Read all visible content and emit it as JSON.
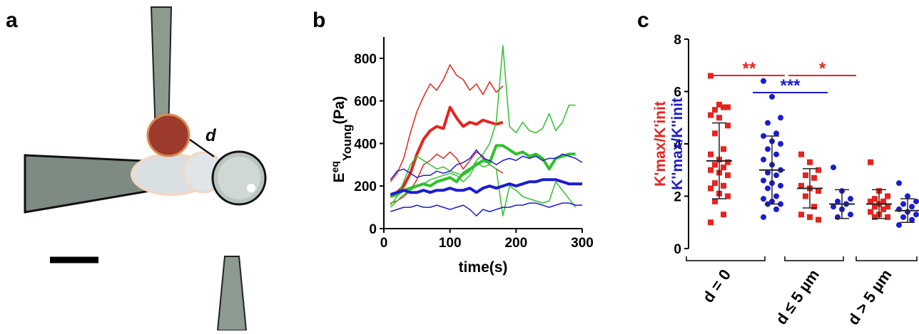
{
  "panels": {
    "a": {
      "label": "a",
      "annotation": "d"
    },
    "b": {
      "label": "b"
    },
    "c": {
      "label": "c"
    }
  },
  "chart_data": [
    {
      "type": "line",
      "x_label": "time(s)",
      "y_label": {
        "base": "E",
        "sup": "eq",
        "sub": "Young",
        "unit": "(Pa)"
      },
      "x": [
        10,
        20,
        30,
        40,
        50,
        60,
        70,
        80,
        90,
        100,
        110,
        120,
        130,
        140,
        150,
        160,
        170,
        180,
        190,
        200,
        210,
        220,
        230,
        240,
        250,
        260,
        270,
        280,
        290,
        300
      ],
      "xlim": [
        0,
        300
      ],
      "xticks": [
        0,
        100,
        200,
        300
      ],
      "ylim": [
        0,
        900
      ],
      "yticks": [
        0,
        200,
        400,
        600,
        800
      ],
      "series": [
        {
          "color": "#e8231e",
          "line_width": 1.5,
          "values": [
            220,
            260,
            330,
            450,
            550,
            620,
            680,
            650,
            700,
            770,
            720,
            700,
            650,
            680,
            630,
            690,
            640,
            670,
            null,
            null,
            null,
            null,
            null,
            null,
            null,
            null,
            null,
            null,
            null,
            null
          ]
        },
        {
          "color": "#e8231e",
          "line_width": 1.5,
          "values": [
            120,
            130,
            150,
            180,
            230,
            300,
            320,
            350,
            330,
            360,
            330,
            280,
            320,
            360,
            340,
            300,
            280,
            260,
            null,
            null,
            null,
            null,
            null,
            null,
            null,
            null,
            null,
            null,
            null,
            null
          ]
        },
        {
          "color": "#e8231e",
          "line_width": 4,
          "values": [
            150,
            170,
            200,
            260,
            350,
            420,
            460,
            480,
            470,
            570,
            520,
            480,
            500,
            490,
            510,
            500,
            490,
            500,
            null,
            null,
            null,
            null,
            null,
            null,
            null,
            null,
            null,
            null,
            null,
            null
          ]
        },
        {
          "color": "#2fc12b",
          "line_width": 1.5,
          "values": [
            110,
            150,
            220,
            300,
            340,
            320,
            300,
            280,
            290,
            270,
            260,
            250,
            270,
            320,
            350,
            400,
            500,
            860,
            480,
            450,
            500,
            460,
            450,
            470,
            540,
            460,
            500,
            580,
            580,
            null
          ]
        },
        {
          "color": "#2fc12b",
          "line_width": 1.5,
          "values": [
            100,
            130,
            160,
            180,
            200,
            210,
            230,
            240,
            250,
            260,
            250,
            220,
            250,
            310,
            290,
            300,
            280,
            60,
            200,
            180,
            150,
            140,
            130,
            120,
            130,
            220,
            180,
            140,
            100,
            null
          ]
        },
        {
          "color": "#2fc12b",
          "line_width": 4,
          "values": [
            150,
            160,
            180,
            190,
            200,
            210,
            200,
            220,
            230,
            240,
            220,
            260,
            280,
            300,
            320,
            310,
            390,
            390,
            370,
            350,
            360,
            340,
            350,
            330,
            280,
            330,
            340,
            350,
            350,
            null
          ]
        },
        {
          "color": "#1c1ccf",
          "line_width": 1.5,
          "values": [
            230,
            270,
            280,
            260,
            240,
            250,
            250,
            270,
            260,
            270,
            300,
            310,
            330,
            370,
            330,
            320,
            300,
            320,
            330,
            320,
            340,
            330,
            340,
            320,
            330,
            330,
            350,
            340,
            330,
            310
          ]
        },
        {
          "color": "#1c1ccf",
          "line_width": 1.5,
          "values": [
            80,
            90,
            100,
            100,
            110,
            100,
            100,
            110,
            100,
            90,
            100,
            110,
            90,
            60,
            90,
            80,
            90,
            100,
            100,
            110,
            110,
            120,
            120,
            110,
            100,
            110,
            120,
            120,
            110,
            110
          ]
        },
        {
          "color": "#1c1ccf",
          "line_width": 4,
          "values": [
            160,
            170,
            180,
            170,
            170,
            180,
            170,
            180,
            180,
            190,
            180,
            180,
            190,
            170,
            190,
            200,
            190,
            200,
            210,
            200,
            210,
            220,
            220,
            230,
            230,
            230,
            220,
            210,
            210,
            210
          ]
        }
      ]
    },
    {
      "type": "dot",
      "categories": [
        "d = 0",
        "d ≤ 5 µm",
        "d > 5 µm"
      ],
      "ylim": [
        0,
        8
      ],
      "yticks": [
        0,
        2,
        4,
        6,
        8
      ],
      "series": [
        {
          "name": "K'max/K'init",
          "color": "#e8231e",
          "marker": "square",
          "points": [
            [
              6.6,
              5.5,
              5.4,
              5.3,
              5.4,
              5.1,
              5.0,
              4.7,
              4.4,
              3.8,
              3.6,
              3.4,
              3.3,
              3.2,
              3.1,
              3.0,
              2.9,
              2.8,
              2.5,
              2.4,
              2.3,
              2.1,
              2.0,
              1.8,
              1.3,
              1.0
            ],
            [
              3.6,
              3.3,
              3.0,
              2.8,
              2.7,
              2.4,
              2.3,
              2.2,
              2.0,
              1.6,
              1.3,
              1.2,
              1.1
            ],
            [
              3.3,
              2.2,
              2.0,
              1.9,
              1.8,
              1.8,
              1.7,
              1.6,
              1.6,
              1.5,
              1.4,
              1.3,
              1.2,
              1.2
            ]
          ],
          "mean": [
            3.35,
            2.3,
            1.7
          ],
          "sd": [
            1.45,
            0.75,
            0.55
          ]
        },
        {
          "name": "K''max/K''init",
          "color": "#1c1ccf",
          "marker": "circle",
          "points": [
            [
              6.4,
              5.8,
              5.0,
              4.8,
              4.4,
              4.3,
              4.1,
              4.0,
              3.8,
              3.6,
              3.4,
              3.2,
              3.0,
              2.9,
              2.8,
              2.6,
              2.5,
              2.4,
              2.3,
              2.0,
              1.9,
              1.8,
              1.7,
              1.7,
              1.5,
              1.2
            ],
            [
              3.1,
              2.2,
              1.9,
              1.8,
              1.7,
              1.6,
              1.5,
              1.3,
              1.2
            ],
            [
              2.5,
              2.0,
              1.8,
              1.7,
              1.6,
              1.5,
              1.4,
              1.3,
              1.2,
              1.1,
              0.9
            ]
          ],
          "mean": [
            3.0,
            1.7,
            1.45
          ],
          "sd": [
            1.3,
            0.55,
            0.45
          ]
        }
      ],
      "annotations": [
        {
          "text": "**",
          "color": "#e8231e"
        },
        {
          "text": "*",
          "color": "#e8231e"
        },
        {
          "text": "***",
          "color": "#1c1ccf"
        }
      ]
    }
  ]
}
